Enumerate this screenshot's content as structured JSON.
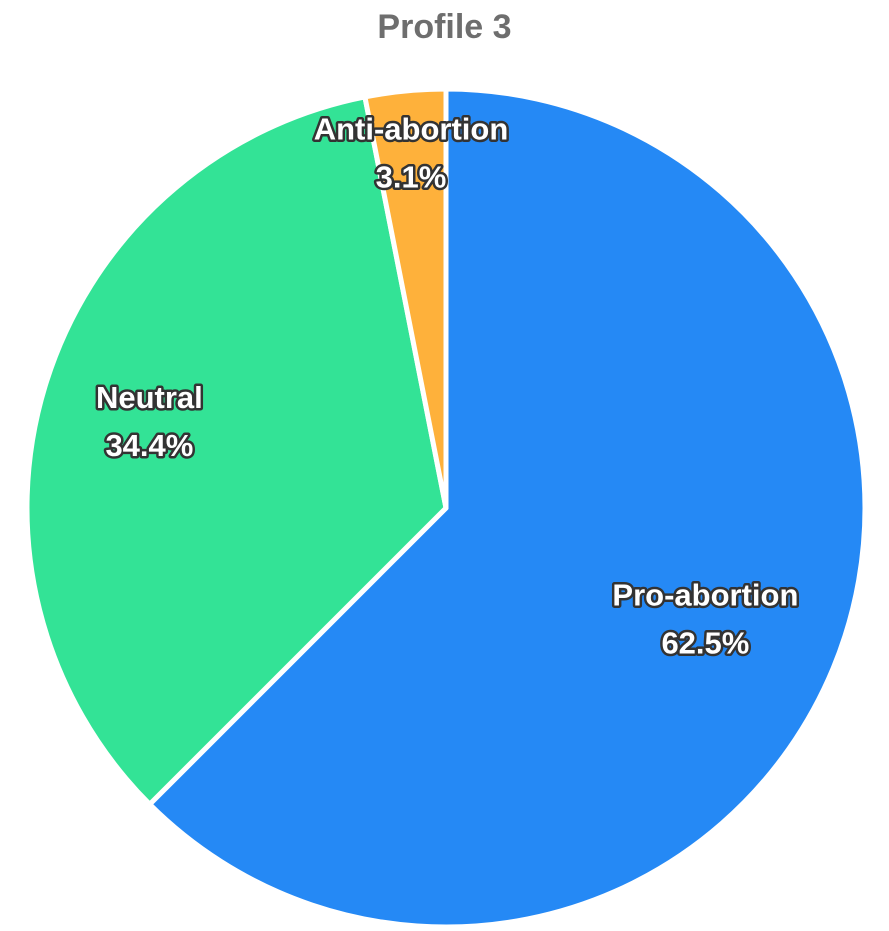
{
  "chart_data": {
    "type": "pie",
    "title": "Profile 3",
    "slices": [
      {
        "label": "Pro-abortion",
        "value": 62.5,
        "display": "62.5%",
        "color": "#2589F5"
      },
      {
        "label": "Neutral",
        "value": 34.4,
        "display": "34.4%",
        "color": "#33E396"
      },
      {
        "label": "Anti-abortion",
        "value": 3.1,
        "display": "3.1%",
        "color": "#FEB13B"
      }
    ],
    "start_angle_deg": 0,
    "direction": "clockwise",
    "legend": "none"
  }
}
